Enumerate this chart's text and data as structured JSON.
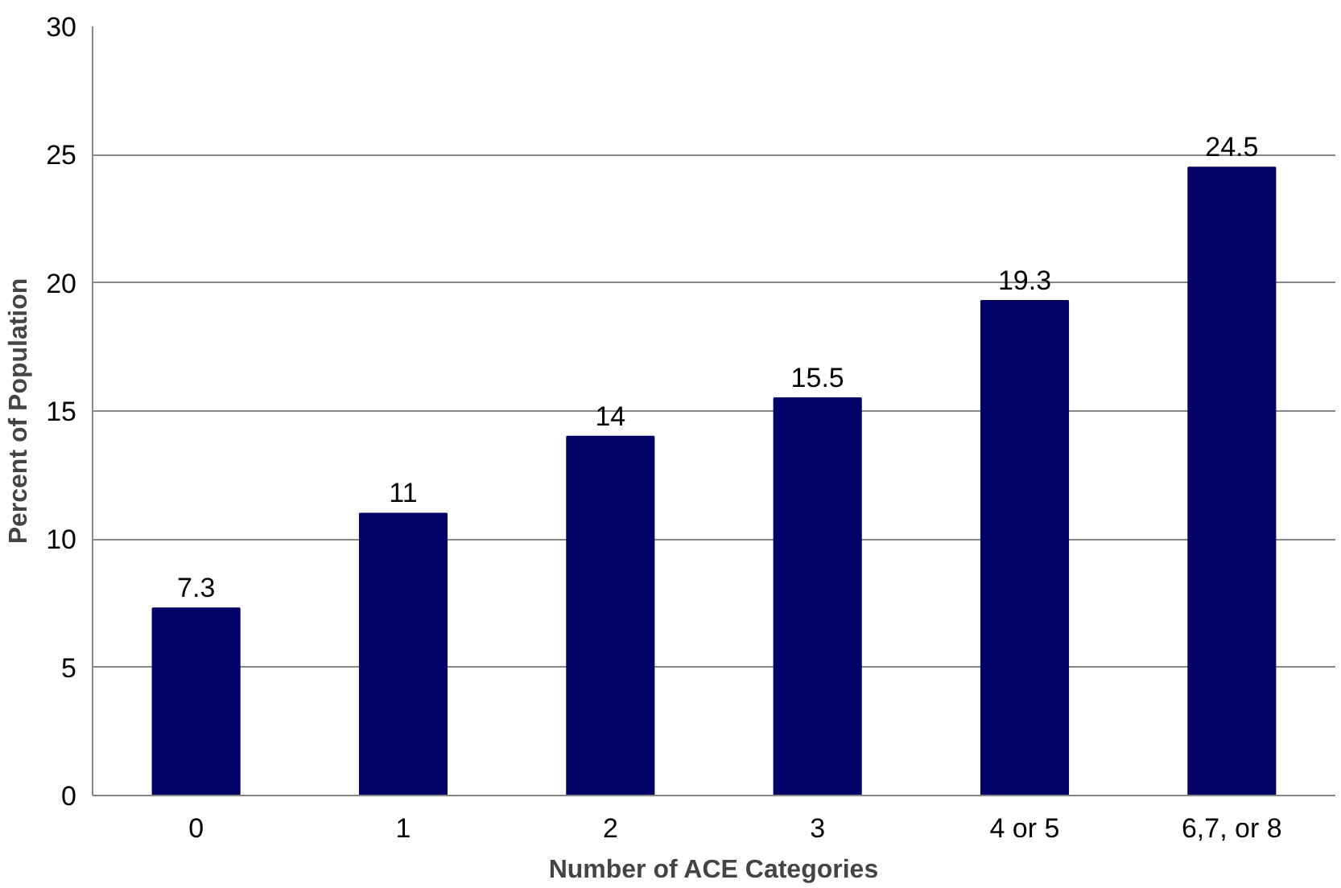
{
  "chart_data": {
    "type": "bar",
    "xlabel": "Number of ACE Categories",
    "ylabel": "Percent of Population",
    "categories": [
      "0",
      "1",
      "2",
      "3",
      "4 or 5",
      "6,7, or 8"
    ],
    "values": [
      7.3,
      11,
      14,
      15.5,
      19.3,
      24.5
    ],
    "color": "#000066",
    "ylim": [
      0,
      30
    ],
    "yticks": [
      0,
      5,
      10,
      15,
      20,
      25,
      30
    ],
    "grid": "y",
    "data_labels": true
  }
}
